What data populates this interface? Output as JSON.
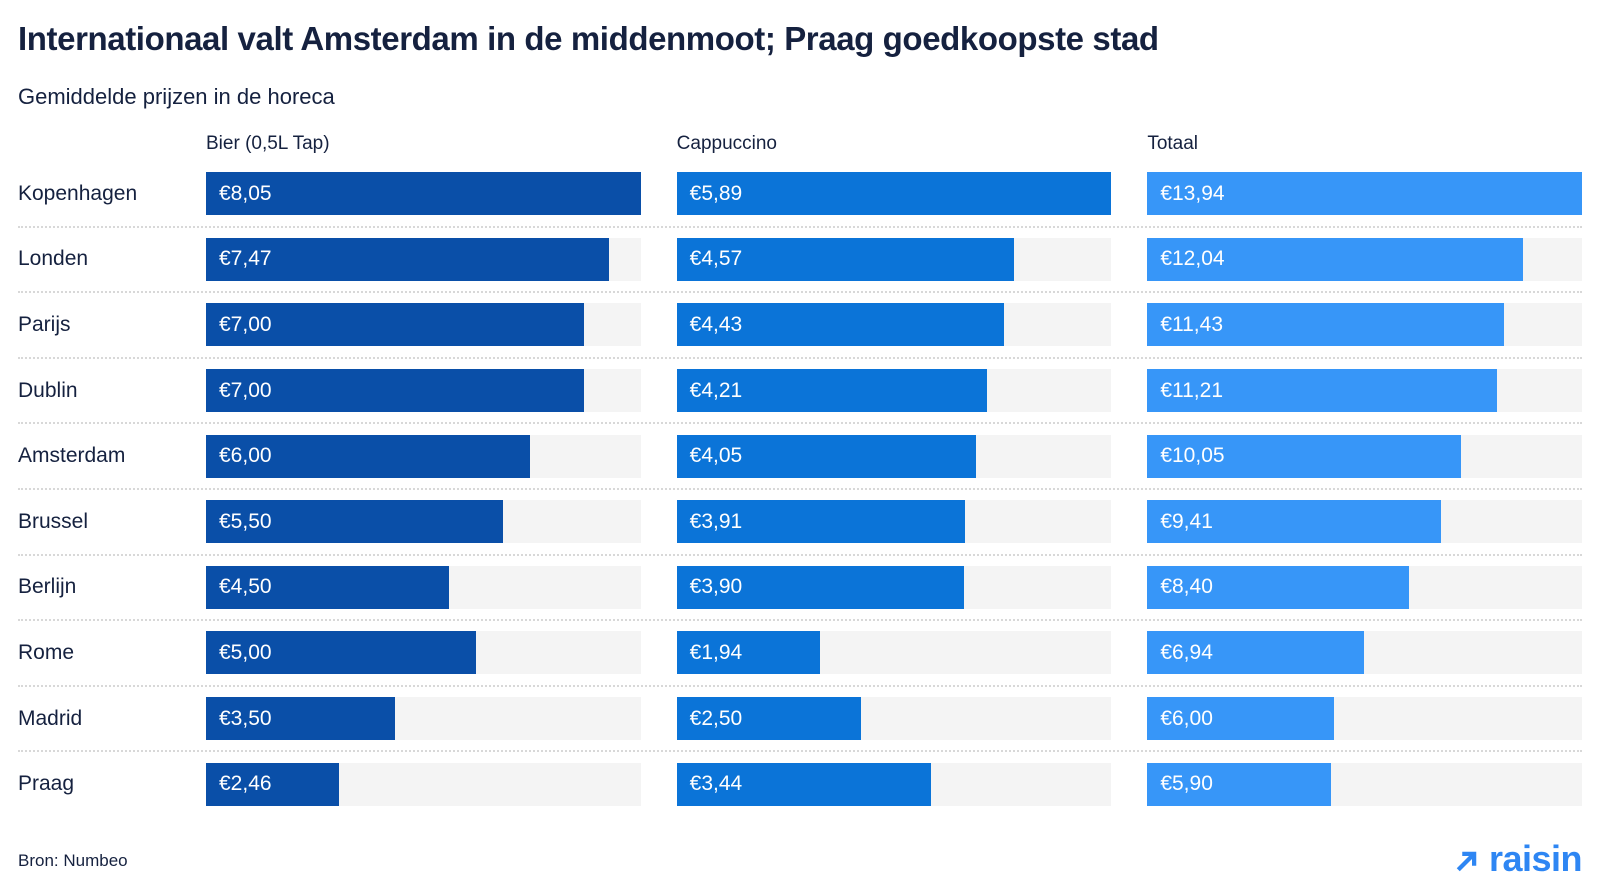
{
  "chart_data": {
    "type": "bar",
    "orientation": "horizontal",
    "title": "Internationaal valt Amsterdam in de middenmoot; Praag goedkoopste stad",
    "subtitle": "Gemiddelde prijzen in de horeca",
    "categories": [
      "Kopenhagen",
      "Londen",
      "Parijs",
      "Dublin",
      "Amsterdam",
      "Brussel",
      "Berlijn",
      "Rome",
      "Madrid",
      "Praag"
    ],
    "series": [
      {
        "name": "Bier (0,5L Tap)",
        "color": "#0A4FA8",
        "axis_max": 8.05,
        "values": [
          8.05,
          7.47,
          7.0,
          7.0,
          6.0,
          5.5,
          4.5,
          5.0,
          3.5,
          2.46
        ],
        "labels": [
          "€8,05",
          "€7,47",
          "€7,00",
          "€7,00",
          "€6,00",
          "€5,50",
          "€4,50",
          "€5,00",
          "€3,50",
          "€2,46"
        ]
      },
      {
        "name": "Cappuccino",
        "color": "#0B74D8",
        "axis_max": 5.89,
        "values": [
          5.89,
          4.57,
          4.43,
          4.21,
          4.05,
          3.91,
          3.9,
          1.94,
          2.5,
          3.44
        ],
        "labels": [
          "€5,89",
          "€4,57",
          "€4,43",
          "€4,21",
          "€4,05",
          "€3,91",
          "€3,90",
          "€1,94",
          "€2,50",
          "€3,44"
        ]
      },
      {
        "name": "Totaal",
        "color": "#3796F8",
        "axis_max": 13.94,
        "values": [
          13.94,
          12.04,
          11.43,
          11.21,
          10.05,
          9.41,
          8.4,
          6.94,
          6.0,
          5.9
        ],
        "labels": [
          "€13,94",
          "€12,04",
          "€11,43",
          "€11,21",
          "€10,05",
          "€9,41",
          "€8,40",
          "€6,94",
          "€6,00",
          "€5,90"
        ]
      }
    ],
    "legend_position": "column headers above each bar panel",
    "grid": false,
    "value_labels": "inside bar, left aligned, white"
  },
  "footer": {
    "source": "Bron: Numbeo",
    "brand": "raisin"
  },
  "style": {
    "track_color": "#F4F4F4",
    "text_color": "#15213F",
    "separator_color": "#D8D8D8",
    "logo_color": "#2E86F3",
    "background": "#FFFFFF"
  }
}
